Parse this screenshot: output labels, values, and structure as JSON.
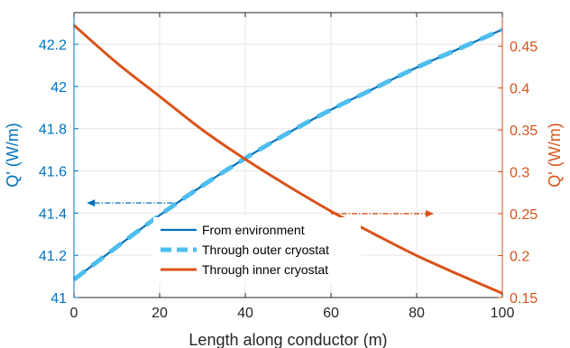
{
  "chart_data": {
    "type": "line",
    "xlabel": "Length along conductor (m)",
    "ylabel_left": "Q' (W/m)",
    "ylabel_right": "Q' (W/m)",
    "xlim": [
      0,
      100
    ],
    "ylim_left": [
      41,
      42.35
    ],
    "ylim_right": [
      0.15,
      0.49
    ],
    "xticks": [
      0,
      20,
      40,
      60,
      80,
      100
    ],
    "yticks_left": [
      41,
      41.2,
      41.4,
      41.6,
      41.8,
      42,
      42.2
    ],
    "yticks_right": [
      0.15,
      0.2,
      0.25,
      0.3,
      0.35,
      0.4,
      0.45
    ],
    "grid": true,
    "legend_position": "lower-left",
    "colors": {
      "left_axis": "#0072bd",
      "right_axis": "#d95319",
      "light_blue": "#4dbeee"
    },
    "series": [
      {
        "name": "From environment",
        "axis": "left",
        "style": "solid",
        "color": "#0072bd",
        "x": [
          0,
          10,
          20,
          30,
          40,
          50,
          60,
          70,
          80,
          90,
          100
        ],
        "y": [
          41.085,
          41.24,
          41.39,
          41.53,
          41.66,
          41.78,
          41.89,
          41.99,
          42.09,
          42.18,
          42.27
        ]
      },
      {
        "name": "Through outer cryostat",
        "axis": "left",
        "style": "dashed",
        "color": "#4dbeee",
        "x": [
          0,
          10,
          20,
          30,
          40,
          50,
          60,
          70,
          80,
          90,
          100
        ],
        "y": [
          41.085,
          41.24,
          41.39,
          41.53,
          41.66,
          41.78,
          41.89,
          41.99,
          42.09,
          42.18,
          42.27
        ]
      },
      {
        "name": "Through inner cryostat",
        "axis": "right",
        "style": "solid",
        "color": "#d95319",
        "x": [
          0,
          10,
          20,
          30,
          40,
          50,
          60,
          70,
          80,
          90,
          100
        ],
        "y": [
          0.475,
          0.43,
          0.39,
          0.35,
          0.315,
          0.283,
          0.253,
          0.226,
          0.2,
          0.177,
          0.155
        ]
      }
    ],
    "arrows": [
      {
        "axis": "left",
        "direction": "left",
        "x_from": 23,
        "x_to": 3,
        "y": 41.448
      },
      {
        "axis": "right",
        "direction": "right",
        "x_from": 60,
        "x_to": 84,
        "y": 0.25
      }
    ]
  }
}
